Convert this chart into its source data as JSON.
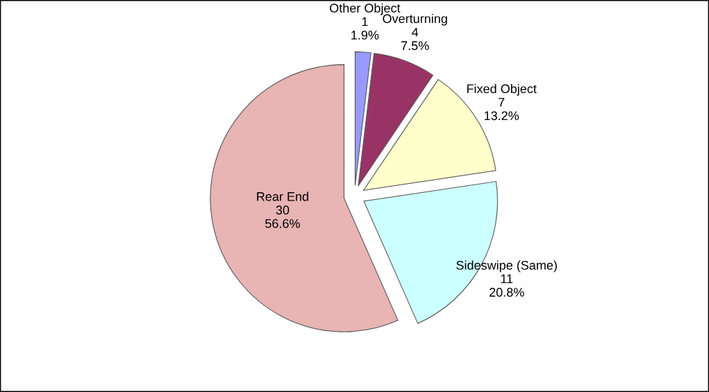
{
  "chart_data": {
    "type": "pie",
    "categories": [
      "Other Object",
      "Overturning",
      "Fixed Object",
      "Sideswipe (Same)",
      "Rear End"
    ],
    "values": [
      1,
      4,
      7,
      11,
      30
    ],
    "colors": [
      "#9999ff",
      "#993366",
      "#ffffcc",
      "#ccffff",
      "#e8b4b4"
    ],
    "value_labels": [
      "1\n1.9%",
      "4\n7.5%",
      "7\n13.2%",
      "11\n20.8%",
      "30\n56.6%"
    ],
    "legend": false
  }
}
